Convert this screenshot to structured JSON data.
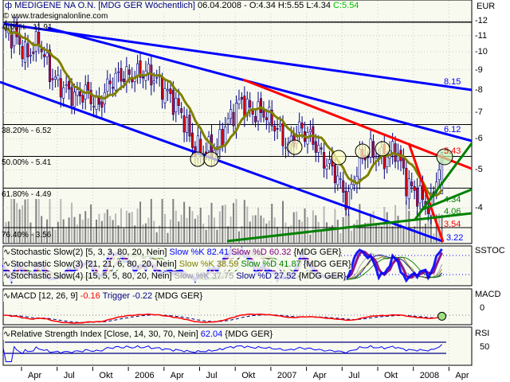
{
  "header": {
    "title": "MEDIGENE NA O.N. [MDG GER  Wöchentlich]",
    "date": "06.04.2008",
    "ohl": "- O:4.34 H:5.55 L:4.34",
    "close": "C:5.54",
    "watermark": "© www.tradesignalonline.com",
    "currency": "EUR"
  },
  "colors": {
    "up_candle": "#ffffff",
    "down_candle": "#e00000",
    "candle_outline": "#000080",
    "moving_average": "#808000",
    "channel": "#0000ff",
    "resistance": "#ff0000",
    "support": "#008000",
    "volume": "#a0a0a0",
    "panel_bg": "#f8faf0",
    "close_text": "#00c000"
  },
  "chart_data": [
    {
      "type": "candlestick",
      "title": "MEDIGENE NA O.N. [MDG GER  Wöchentlich]",
      "y_scale": "log",
      "ylim": [
        3.3,
        12.5
      ],
      "y_ticks": [
        "12",
        "11",
        "10",
        "9",
        "8",
        "7",
        "6",
        "5",
        "4"
      ],
      "x_ticks": [
        "Apr",
        "Jul",
        "Okt",
        "2006",
        "Apr",
        "Jul",
        "Okt",
        "2007",
        "Apr",
        "Jul",
        "Okt",
        "2008",
        "Apr"
      ],
      "months": [
        "2005-02",
        "2005-03",
        "2005-04",
        "2005-05",
        "2005-06",
        "2005-07",
        "2005-08",
        "2005-09",
        "2005-10",
        "2005-11",
        "2005-12",
        "2006-01",
        "2006-02",
        "2006-03",
        "2006-04",
        "2006-05",
        "2006-06",
        "2006-07",
        "2006-08",
        "2006-09",
        "2006-10",
        "2006-11",
        "2006-12",
        "2007-01",
        "2007-02",
        "2007-03",
        "2007-04",
        "2007-05",
        "2007-06",
        "2007-07",
        "2007-08",
        "2007-09",
        "2007-10",
        "2007-11",
        "2007-12",
        "2008-01",
        "2008-02",
        "2008-03"
      ],
      "monthly_close": [
        11.2,
        11.0,
        9.7,
        10.7,
        8.7,
        8.1,
        7.7,
        7.9,
        7.2,
        8.4,
        8.7,
        8.7,
        8.9,
        8.4,
        7.7,
        7.0,
        5.7,
        5.6,
        5.7,
        6.7,
        7.5,
        7.0,
        7.0,
        6.4,
        5.7,
        6.4,
        6.0,
        5.3,
        4.9,
        4.1,
        5.3,
        5.6,
        5.3,
        5.7,
        4.6,
        4.3,
        4.0,
        5.54
      ],
      "last_bar": {
        "date": "06.04.2008",
        "open": 4.34,
        "high": 5.55,
        "low": 4.34,
        "close": 5.54
      },
      "fibonacci": [
        {
          "label": "0.00% - 11.91",
          "value": 11.91
        },
        {
          "label": "38.20% - 6.52",
          "value": 6.52
        },
        {
          "label": "50.00% - 5.41",
          "value": 5.41
        },
        {
          "label": "61.80% - 4.49",
          "value": 4.49
        },
        {
          "label": "76.40% - 3.56",
          "value": 3.56
        }
      ],
      "trendline_labels": [
        {
          "text": "8.15",
          "color": "#0000ff",
          "value": 8.15
        },
        {
          "text": "6.12",
          "color": "#0000ff",
          "value": 6.12
        },
        {
          "text": "5.43",
          "color": "#ff0000",
          "value": 5.43
        },
        {
          "text": "4.34",
          "color": "#008000",
          "value": 4.34
        },
        {
          "text": "4.06",
          "color": "#008000",
          "value": 4.06
        },
        {
          "text": "3.54",
          "color": "#ff0000",
          "value": 3.54
        },
        {
          "text": "3.22",
          "color": "#0000ff",
          "value": 3.22
        }
      ]
    },
    {
      "type": "line",
      "axis_label": "SSTOC",
      "legend": [
        {
          "name": "Stochastic Slow(2) [5, 3, 3, 80, 20, Nein]",
          "parts": [
            {
              "text": "Slow %K 82.41",
              "color": "#0000ff"
            },
            {
              "text": "Slow %D 60.32",
              "color": "#800080"
            }
          ],
          "suffix": "{MDG GER}"
        },
        {
          "name": "Stochastic Slow(3) [21, 21, 6, 80, 20, Nein]",
          "parts": [
            {
              "text": "Slow %K 38.59",
              "color": "#808000"
            },
            {
              "text": "Slow %D 41.87",
              "color": "#008000"
            }
          ],
          "suffix": "{MDG GER}"
        },
        {
          "name": "Stochastic Slow(4) [15, 5, 5, 80, 20, Nein]",
          "parts": [
            {
              "text": "Slow %K 37.75",
              "color": "#a0a0a0"
            },
            {
              "text": "Slow %D 27.52",
              "color": "#000080"
            }
          ],
          "suffix": "{MDG GER}"
        }
      ],
      "levels": [
        80,
        20
      ]
    },
    {
      "type": "line",
      "axis_label": "MACD",
      "y_ticks": [
        "0"
      ],
      "legend": {
        "name": "MACD [12, 26, 9]",
        "macd": "-0.16",
        "trigger_label": "Trigger",
        "trigger": "-0.22",
        "suffix": "{MDG GER}"
      },
      "series_colors": {
        "macd": "#ff0000",
        "trigger": "#000080"
      }
    },
    {
      "type": "line",
      "axis_label": "RSI",
      "y_ticks": [
        "50"
      ],
      "legend": {
        "name": "Relative Strength Index [Close, 14, 30, 70, Nein]",
        "value": "62.04",
        "suffix": "{MDG GER}"
      },
      "levels": [
        70,
        30
      ]
    }
  ]
}
